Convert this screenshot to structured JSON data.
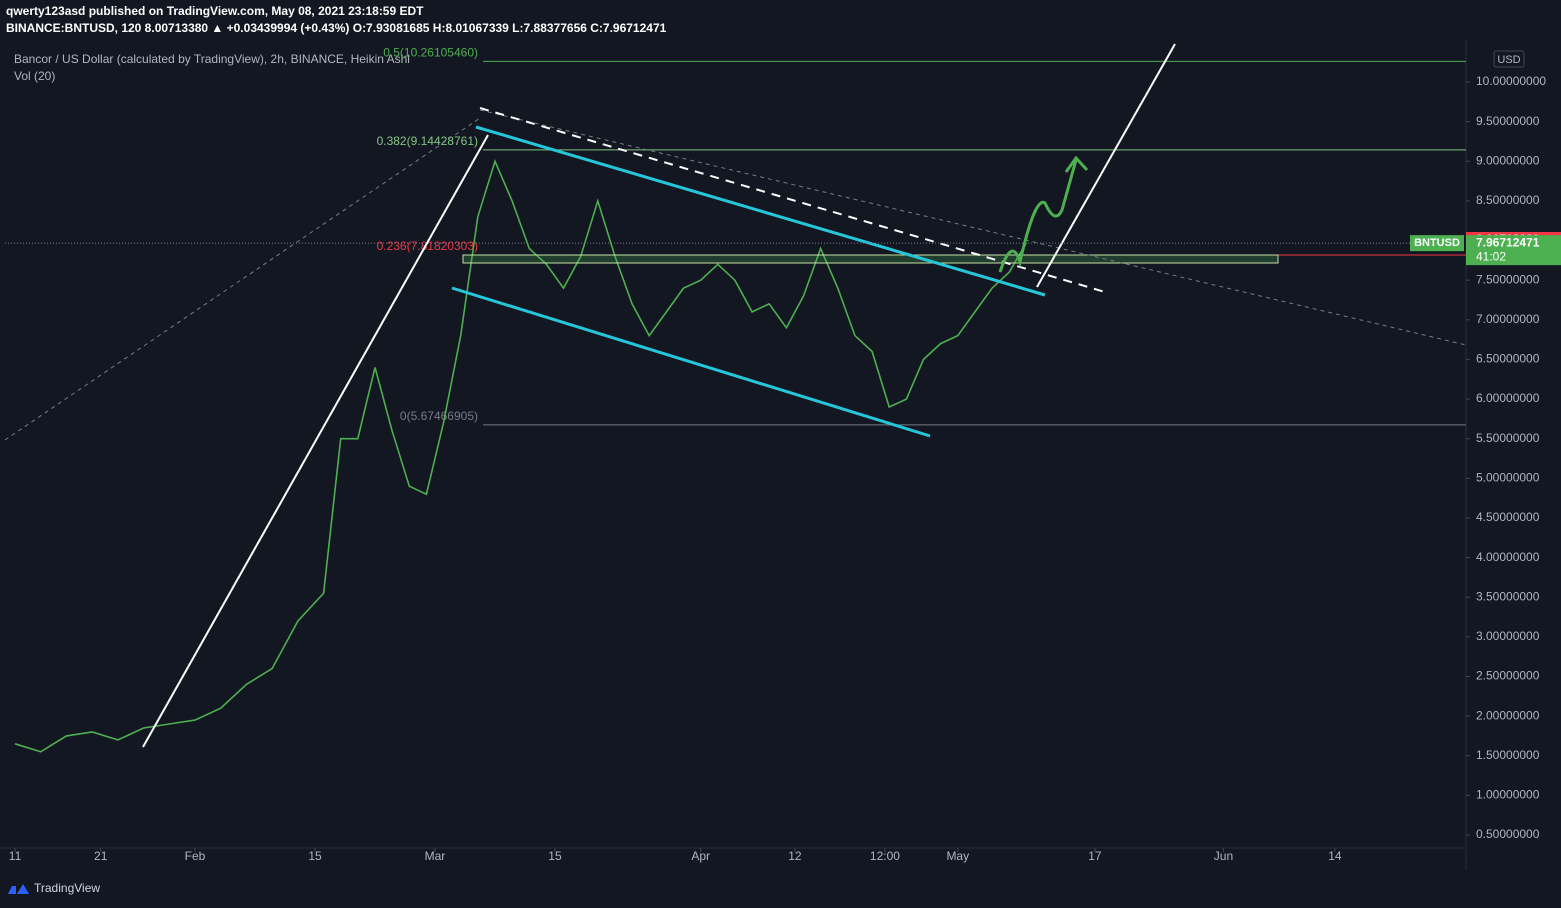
{
  "chart_data": {
    "type": "line",
    "published": "qwerty123asd published on TradingView.com, May 08, 2021 23:18:59 EDT",
    "quote": "BINANCE:BNTUSD, 120 8.00713380 ▲ +0.03439994 (+0.43%) O:7.93081685 H:8.01067339 L:7.88377656 C:7.96712471",
    "title": "Bancor / US Dollar (calculated by TradingView), 2h, BINANCE, Heikin Ashi",
    "indicator": "Vol (20)",
    "currency": "USD",
    "brand": "TradingView",
    "x": [
      10,
      13,
      16,
      19,
      22,
      25,
      28,
      31,
      34,
      37,
      40,
      43,
      46,
      48,
      50,
      52,
      54,
      56,
      58,
      60,
      62,
      64,
      66,
      68,
      70,
      72,
      74,
      76,
      78,
      80,
      82,
      84,
      86,
      88,
      90,
      92,
      94,
      96,
      98,
      100,
      102,
      104,
      106,
      108,
      110,
      112,
      114,
      116,
      118,
      120,
      122,
      124,
      126,
      128
    ],
    "series": [
      {
        "name": "BNTUSD",
        "color": "#4caf50",
        "values": [
          1.65,
          1.55,
          1.75,
          1.8,
          1.7,
          1.85,
          1.9,
          1.95,
          2.1,
          2.4,
          2.6,
          3.2,
          3.55,
          5.5,
          5.5,
          6.4,
          5.6,
          4.9,
          4.8,
          5.7,
          6.8,
          8.3,
          9.0,
          8.5,
          7.9,
          7.7,
          7.4,
          7.8,
          8.5,
          7.8,
          7.2,
          6.8,
          7.1,
          7.4,
          7.5,
          7.7,
          7.5,
          7.1,
          7.2,
          6.9,
          7.3,
          7.9,
          7.4,
          6.8,
          6.6,
          5.9,
          6.0,
          6.5,
          6.7,
          6.8,
          7.1,
          7.4,
          7.6,
          7.97
        ]
      }
    ],
    "xlim": [
      8.83,
      179.3
    ],
    "xticks": [
      {
        "value": 10,
        "label": "11"
      },
      {
        "value": 20,
        "label": "21"
      },
      {
        "value": 31,
        "label": "Feb"
      },
      {
        "value": 45,
        "label": "15"
      },
      {
        "value": 59,
        "label": "Mar"
      },
      {
        "value": 73,
        "label": "15"
      },
      {
        "value": 90,
        "label": "Apr"
      },
      {
        "value": 101,
        "label": "12"
      },
      {
        "value": 111.5,
        "label": "12:00"
      },
      {
        "value": 120,
        "label": "May"
      },
      {
        "value": 136,
        "label": "17"
      },
      {
        "value": 151,
        "label": "Jun"
      },
      {
        "value": 164,
        "label": "14"
      }
    ],
    "ylim": [
      0.336,
      10.53
    ],
    "yticks": [
      {
        "value": 0.5,
        "label": "0.50000000"
      },
      {
        "value": 1,
        "label": "1.00000000"
      },
      {
        "value": 1.5,
        "label": "1.50000000"
      },
      {
        "value": 2,
        "label": "2.00000000"
      },
      {
        "value": 2.5,
        "label": "2.50000000"
      },
      {
        "value": 3,
        "label": "3.00000000"
      },
      {
        "value": 3.5,
        "label": "3.50000000"
      },
      {
        "value": 4,
        "label": "4.00000000"
      },
      {
        "value": 4.5,
        "label": "4.50000000"
      },
      {
        "value": 5,
        "label": "5.00000000"
      },
      {
        "value": 5.5,
        "label": "5.50000000"
      },
      {
        "value": 6,
        "label": "6.00000000"
      },
      {
        "value": 6.5,
        "label": "6.50000000"
      },
      {
        "value": 7,
        "label": "7.00000000"
      },
      {
        "value": 7.5,
        "label": "7.50000000"
      },
      {
        "value": 8,
        "label": "8.00000000"
      },
      {
        "value": 8.5,
        "label": "8.50000000"
      },
      {
        "value": 9,
        "label": "9.00000000"
      },
      {
        "value": 9.5,
        "label": "9.50000000"
      },
      {
        "value": 10,
        "label": "10.00000000"
      }
    ],
    "levels": [
      {
        "label": "0.5(10.26105460)",
        "value": 10.2610546,
        "color": "#4caf50"
      },
      {
        "label": "0.382(9.14428761)",
        "value": 9.14428761,
        "color": "#81c784"
      },
      {
        "label": "0.236(7.81820303)",
        "value": 7.81820303,
        "color": "#f23645"
      },
      {
        "label": "0(5.67466905)",
        "value": 5.67466905,
        "color": "#787b86"
      }
    ],
    "high_price": {
      "value": 8.0071338,
      "label": "8.00713380",
      "color": "#f23645"
    },
    "last_price": {
      "value": 7.96712471,
      "label": "7.96712471",
      "color": "#4caf50"
    },
    "symbol": "BNTUSD",
    "countdown": "41:02"
  }
}
